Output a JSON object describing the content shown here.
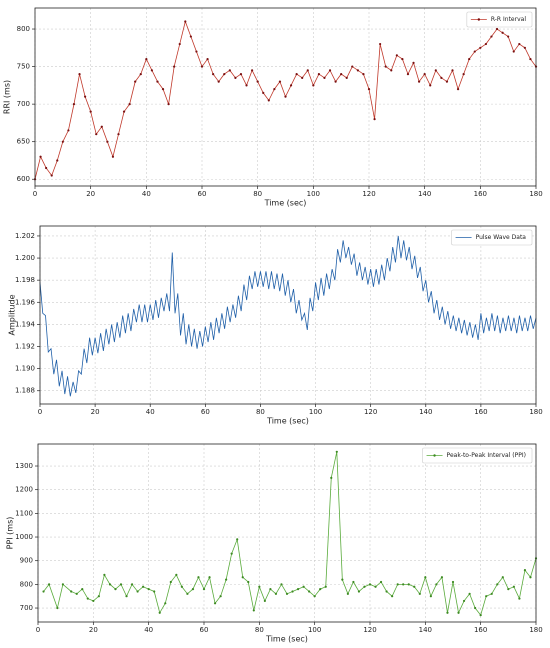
{
  "chart_data": [
    {
      "type": "line",
      "x_label": "Time (sec)",
      "y_label": "RRI (ms)",
      "legend": "upper right",
      "grid": true,
      "xlim": [
        0,
        180
      ],
      "ylim": [
        591,
        828
      ],
      "xticks": [
        0,
        20,
        40,
        60,
        80,
        100,
        120,
        140,
        160,
        180
      ],
      "yticks": [
        600,
        650,
        700,
        750,
        800
      ],
      "x": [
        0,
        2,
        4,
        6,
        8,
        10,
        12,
        14,
        16,
        18,
        20,
        22,
        24,
        26,
        28,
        30,
        32,
        34,
        36,
        38,
        40,
        42,
        44,
        46,
        48,
        50,
        52,
        54,
        56,
        58,
        60,
        62,
        64,
        66,
        68,
        70,
        72,
        74,
        76,
        78,
        80,
        82,
        84,
        86,
        88,
        90,
        92,
        94,
        96,
        98,
        100,
        102,
        104,
        106,
        108,
        110,
        112,
        114,
        116,
        118,
        120,
        122,
        124,
        126,
        128,
        130,
        132,
        134,
        136,
        138,
        140,
        142,
        144,
        146,
        148,
        150,
        152,
        154,
        156,
        158,
        160,
        162,
        164,
        166,
        168,
        170,
        172,
        174,
        176,
        178,
        180
      ],
      "series": [
        {
          "name": "R-R Interval",
          "color": "#c0392b",
          "marker_color": "#7a1010",
          "marker": true,
          "values": [
            600,
            630,
            615,
            605,
            625,
            650,
            665,
            700,
            740,
            710,
            690,
            660,
            670,
            650,
            630,
            660,
            690,
            700,
            730,
            740,
            760,
            745,
            730,
            720,
            700,
            750,
            780,
            810,
            790,
            770,
            750,
            760,
            740,
            730,
            740,
            745,
            735,
            740,
            725,
            745,
            730,
            715,
            705,
            720,
            730,
            710,
            725,
            740,
            735,
            745,
            725,
            740,
            735,
            745,
            730,
            740,
            735,
            750,
            745,
            740,
            720,
            680,
            780,
            750,
            745,
            765,
            760,
            740,
            755,
            730,
            740,
            725,
            745,
            735,
            730,
            745,
            720,
            740,
            760,
            770,
            775,
            780,
            790,
            800,
            795,
            790,
            770,
            780,
            775,
            760,
            750
          ]
        }
      ]
    },
    {
      "type": "line",
      "x_label": "Time (sec)",
      "y_label": "Amplitude",
      "legend": "upper right",
      "grid": true,
      "xlim": [
        0,
        180
      ],
      "ylim": [
        1.1868,
        1.2029
      ],
      "xticks": [
        0,
        20,
        40,
        60,
        80,
        100,
        120,
        140,
        160,
        180
      ],
      "yticks": [
        1.188,
        {
          "value": 1.19,
          "label": "1.190"
        },
        1.192,
        1.194,
        1.196,
        1.198,
        {
          "value": 1.2,
          "label": "1.200"
        },
        1.202
      ],
      "x": [
        0,
        1,
        2,
        3,
        4,
        5,
        6,
        7,
        8,
        9,
        10,
        11,
        12,
        13,
        14,
        15,
        16,
        17,
        18,
        19,
        20,
        21,
        22,
        23,
        24,
        25,
        26,
        27,
        28,
        29,
        30,
        31,
        32,
        33,
        34,
        35,
        36,
        37,
        38,
        39,
        40,
        41,
        42,
        43,
        44,
        45,
        46,
        47,
        48,
        49,
        50,
        51,
        52,
        53,
        54,
        55,
        56,
        57,
        58,
        59,
        60,
        61,
        62,
        63,
        64,
        65,
        66,
        67,
        68,
        69,
        70,
        71,
        72,
        73,
        74,
        75,
        76,
        77,
        78,
        79,
        80,
        81,
        82,
        83,
        84,
        85,
        86,
        87,
        88,
        89,
        90,
        91,
        92,
        93,
        94,
        95,
        96,
        97,
        98,
        99,
        100,
        101,
        102,
        103,
        104,
        105,
        106,
        107,
        108,
        109,
        110,
        111,
        112,
        113,
        114,
        115,
        116,
        117,
        118,
        119,
        120,
        121,
        122,
        123,
        124,
        125,
        126,
        127,
        128,
        129,
        130,
        131,
        132,
        133,
        134,
        135,
        136,
        137,
        138,
        139,
        140,
        141,
        142,
        143,
        144,
        145,
        146,
        147,
        148,
        149,
        150,
        151,
        152,
        153,
        154,
        155,
        156,
        157,
        158,
        159,
        160,
        161,
        162,
        163,
        164,
        165,
        166,
        167,
        168,
        169,
        170,
        171,
        172,
        173,
        174,
        175,
        176,
        177,
        178,
        179,
        180
      ],
      "series": [
        {
          "name": "Pulse Wave Data",
          "color": "#1f5fa8",
          "marker": false,
          "values": [
            1.1978,
            1.195,
            1.1948,
            1.1915,
            1.1918,
            1.1895,
            1.1908,
            1.1884,
            1.1898,
            1.1877,
            1.1893,
            1.1875,
            1.1888,
            1.1878,
            1.1898,
            1.1895,
            1.1918,
            1.1905,
            1.1928,
            1.1912,
            1.1928,
            1.1914,
            1.1932,
            1.1916,
            1.1936,
            1.1922,
            1.194,
            1.1924,
            1.1942,
            1.1928,
            1.1948,
            1.1932,
            1.195,
            1.1934,
            1.1954,
            1.1942,
            1.1958,
            1.1942,
            1.1958,
            1.1942,
            1.1958,
            1.1944,
            1.1962,
            1.1946,
            1.1964,
            1.1952,
            1.1968,
            1.1952,
            1.2005,
            1.195,
            1.1968,
            1.193,
            1.195,
            1.1922,
            1.194,
            1.192,
            1.1936,
            1.1918,
            1.1934,
            1.192,
            1.1938,
            1.1924,
            1.1942,
            1.1926,
            1.1946,
            1.1932,
            1.195,
            1.1936,
            1.1956,
            1.1942,
            1.1958,
            1.1946,
            1.1966,
            1.1952,
            1.1976,
            1.1962,
            1.1984,
            1.1972,
            1.1988,
            1.1974,
            1.1988,
            1.1974,
            1.1988,
            1.1972,
            1.1988,
            1.1972,
            1.1986,
            1.197,
            1.1986,
            1.1966,
            1.198,
            1.196,
            1.1972,
            1.195,
            1.1962,
            1.1944,
            1.195,
            1.1935,
            1.1964,
            1.1952,
            1.1978,
            1.1962,
            1.1982,
            1.1966,
            1.1986,
            1.1972,
            1.199,
            1.198,
            1.2008,
            1.1996,
            1.2016,
            1.2,
            1.201,
            1.1994,
            1.2004,
            1.1984,
            1.1996,
            1.198,
            1.1992,
            1.1976,
            1.199,
            1.1974,
            1.199,
            1.1976,
            1.1994,
            1.198,
            1.2,
            1.1988,
            1.201,
            1.1996,
            1.202,
            1.2,
            1.2016,
            1.1998,
            1.201,
            1.199,
            1.2002,
            1.1982,
            1.1992,
            1.197,
            1.198,
            1.196,
            1.197,
            1.195,
            1.1962,
            1.1944,
            1.1956,
            1.194,
            1.1952,
            1.1936,
            1.1948,
            1.1934,
            1.1946,
            1.1932,
            1.1944,
            1.193,
            1.1942,
            1.1928,
            1.194,
            1.1926,
            1.195,
            1.1932,
            1.1946,
            1.1934,
            1.195,
            1.1934,
            1.1948,
            1.1932,
            1.1946,
            1.1934,
            1.1948,
            1.1934,
            1.1946,
            1.1932,
            1.1948,
            1.1934,
            1.1946,
            1.1934,
            1.1948,
            1.1936,
            1.1946
          ]
        }
      ]
    },
    {
      "type": "line",
      "x_label": "Time (sec)",
      "y_label": "PPI (ms)",
      "legend": "upper right",
      "grid": true,
      "xlim": [
        0,
        180
      ],
      "ylim": [
        641,
        1393
      ],
      "xticks": [
        0,
        20,
        40,
        60,
        80,
        100,
        120,
        140,
        160,
        180
      ],
      "yticks": [
        700,
        800,
        900,
        1000,
        1100,
        1200,
        1300
      ],
      "x": [
        2,
        4,
        7,
        9,
        12,
        14,
        16,
        18,
        20,
        22,
        24,
        26,
        28,
        30,
        32,
        34,
        36,
        38,
        40,
        42,
        44,
        46,
        48,
        50,
        52,
        54,
        56,
        58,
        60,
        62,
        64,
        66,
        68,
        70,
        72,
        74,
        76,
        78,
        80,
        82,
        84,
        86,
        88,
        90,
        92,
        94,
        96,
        98,
        100,
        102,
        104,
        106,
        108,
        110,
        112,
        114,
        116,
        118,
        120,
        122,
        124,
        126,
        128,
        130,
        132,
        134,
        136,
        138,
        140,
        142,
        144,
        146,
        148,
        150,
        152,
        154,
        156,
        158,
        160,
        162,
        164,
        166,
        168,
        170,
        172,
        174,
        176,
        178,
        180
      ],
      "series": [
        {
          "name": "Peak-to-Peak Interval (PPI)",
          "color": "#5aab3c",
          "marker_color": "#3d8a22",
          "marker": true,
          "values": [
            770,
            800,
            700,
            800,
            770,
            760,
            780,
            740,
            730,
            750,
            840,
            800,
            780,
            800,
            750,
            800,
            770,
            790,
            780,
            770,
            680,
            720,
            810,
            840,
            790,
            760,
            780,
            830,
            780,
            830,
            720,
            750,
            820,
            930,
            990,
            830,
            810,
            690,
            790,
            730,
            780,
            760,
            800,
            760,
            770,
            780,
            790,
            770,
            750,
            780,
            790,
            1250,
            1360,
            820,
            760,
            810,
            770,
            790,
            800,
            790,
            810,
            770,
            750,
            800,
            800,
            800,
            790,
            760,
            830,
            750,
            800,
            830,
            680,
            810,
            680,
            730,
            760,
            700,
            670,
            750,
            760,
            800,
            830,
            780,
            790,
            740,
            860,
            830,
            910
          ]
        }
      ]
    }
  ]
}
